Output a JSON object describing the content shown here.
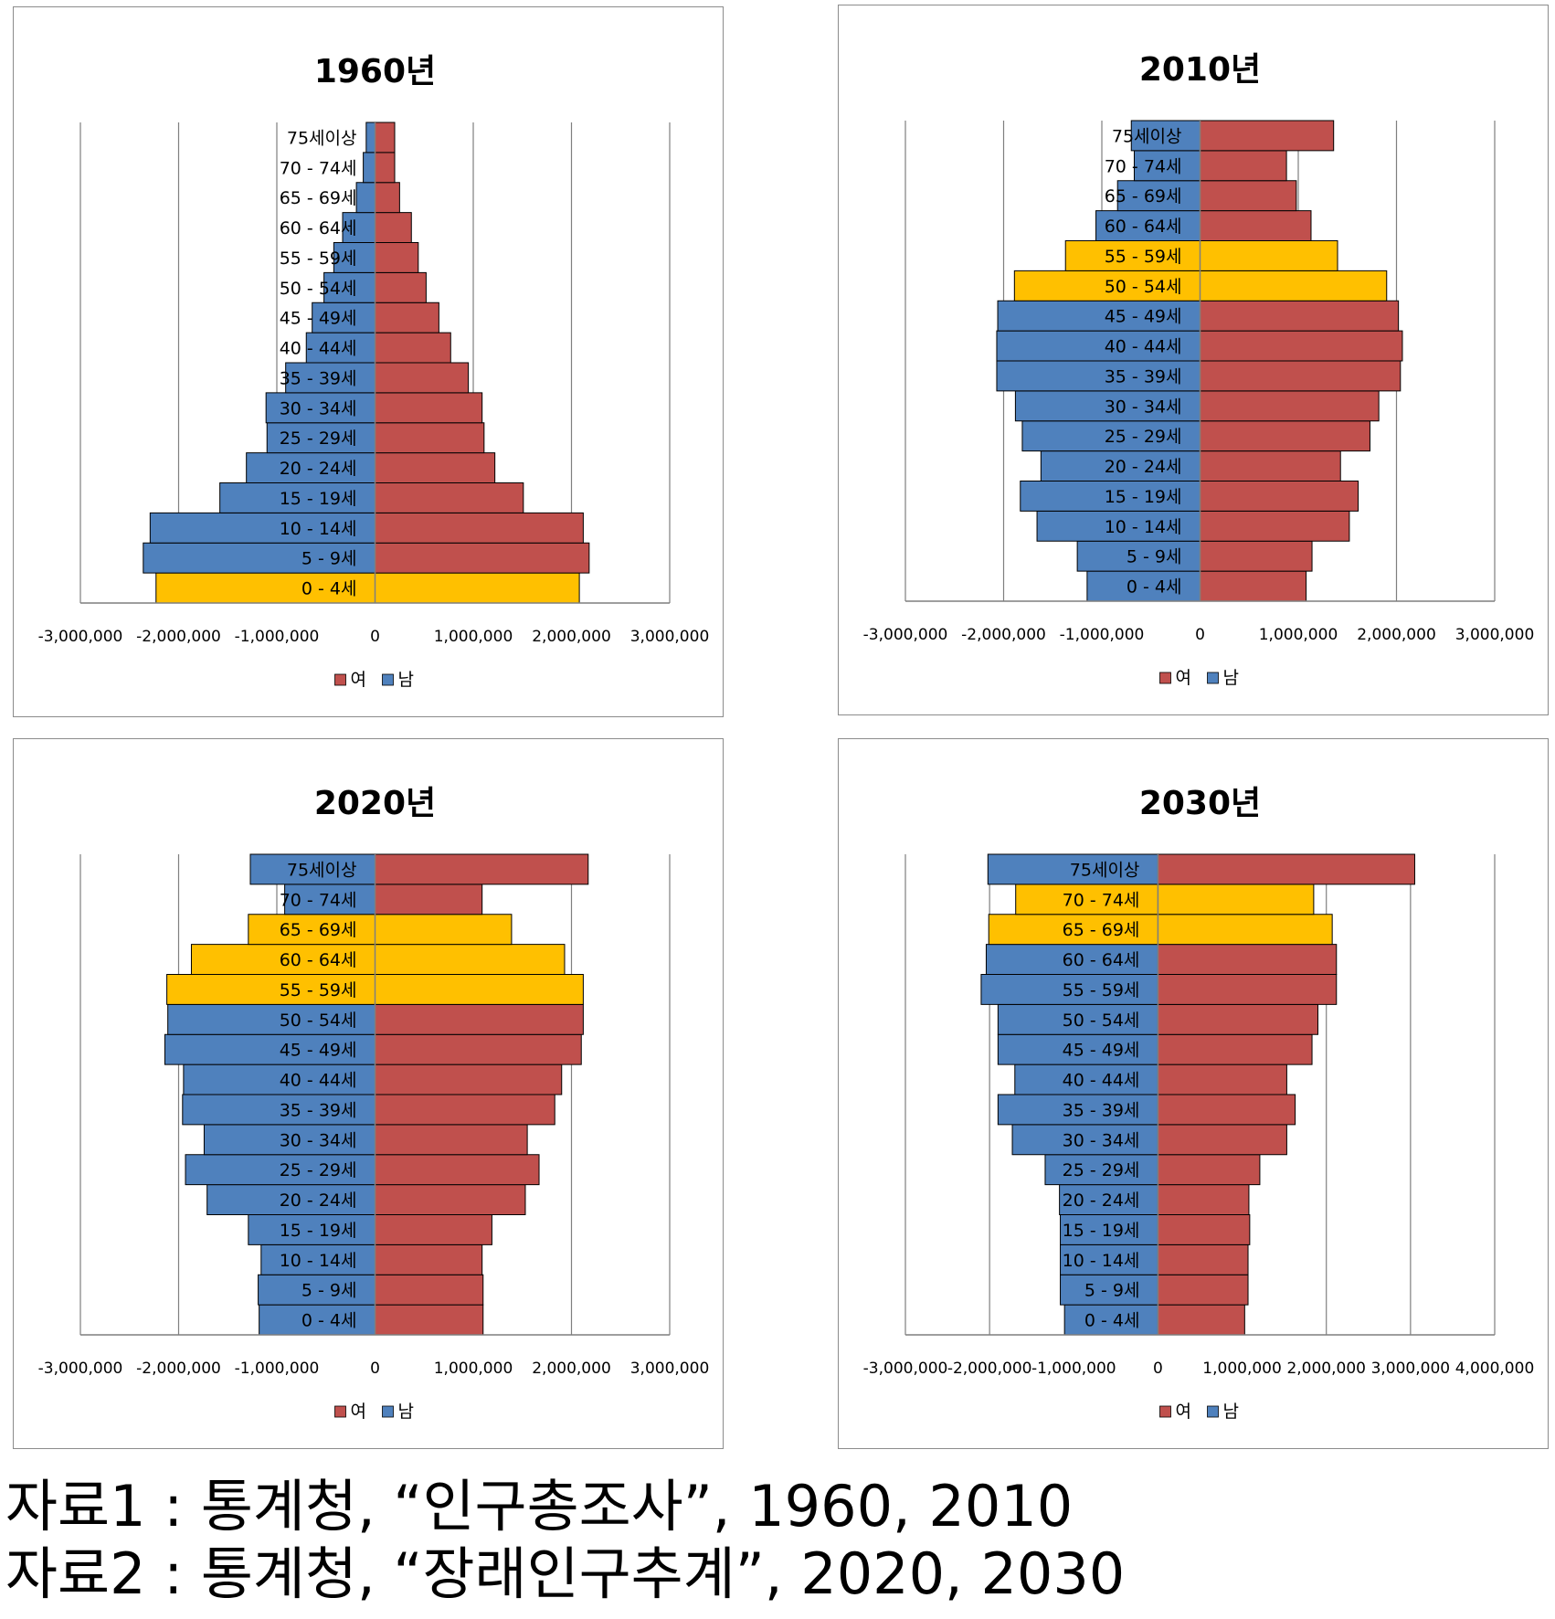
{
  "colors": {
    "female": "#c0504d",
    "male": "#4f81bd",
    "highlight": "#ffc000",
    "bar_stroke": "#000000",
    "grid": "#7f7f7f",
    "panel_border": "#8c8c8c"
  },
  "chart_data": [
    {
      "type": "bar",
      "title": "1960년",
      "categories": [
        "0 - 4세",
        "5 - 9세",
        "10 - 14세",
        "15 - 19세",
        "20 - 24세",
        "25 - 29세",
        "30 - 34세",
        "35 - 39세",
        "40 - 44세",
        "45 - 49세",
        "50 - 54세",
        "55 - 59세",
        "60 - 64세",
        "65 - 69세",
        "70 - 74세",
        "75세이상"
      ],
      "series": [
        {
          "name": "여",
          "values": [
            2080000,
            2180000,
            2120000,
            1510000,
            1220000,
            1110000,
            1090000,
            950000,
            770000,
            650000,
            520000,
            440000,
            370000,
            250000,
            200000,
            200000
          ]
        },
        {
          "name": "남",
          "values": [
            -2230000,
            -2360000,
            -2290000,
            -1580000,
            -1310000,
            -1100000,
            -1110000,
            -910000,
            -700000,
            -640000,
            -520000,
            -420000,
            -330000,
            -190000,
            -120000,
            -90000
          ]
        }
      ],
      "highlight": [
        0
      ],
      "x_ticks": [
        "-3,000,000",
        "-2,000,000",
        "-1,000,000",
        "0",
        "1,000,000",
        "2,000,000",
        "3,000,000"
      ],
      "xlim": [
        -3000000,
        3000000
      ],
      "legend": [
        "여",
        "남"
      ],
      "legend_position": "bottom",
      "grid": true
    },
    {
      "type": "bar",
      "title": "2010년",
      "categories": [
        "0 - 4세",
        "5 - 9세",
        "10 - 14세",
        "15 - 19세",
        "20 - 24세",
        "25 - 29세",
        "30 - 34세",
        "35 - 39세",
        "40 - 44세",
        "45 - 49세",
        "50 - 54세",
        "55 - 59세",
        "60 - 64세",
        "65 - 69세",
        "70 - 74세",
        "75세이상"
      ],
      "series": [
        {
          "name": "여",
          "values": [
            1080000,
            1140000,
            1520000,
            1610000,
            1430000,
            1730000,
            1820000,
            2040000,
            2060000,
            2020000,
            1900000,
            1400000,
            1130000,
            980000,
            880000,
            1360000
          ]
        },
        {
          "name": "남",
          "values": [
            -1150000,
            -1250000,
            -1660000,
            -1830000,
            -1620000,
            -1810000,
            -1880000,
            -2070000,
            -2070000,
            -2060000,
            -1890000,
            -1370000,
            -1060000,
            -840000,
            -670000,
            -700000
          ]
        }
      ],
      "highlight": [
        10,
        11
      ],
      "x_ticks": [
        "-3,000,000",
        "-2,000,000",
        "-1,000,000",
        "0",
        "1,000,000",
        "2,000,000",
        "3,000,000"
      ],
      "xlim": [
        -3000000,
        3000000
      ],
      "legend": [
        "여",
        "남"
      ],
      "legend_position": "bottom",
      "grid": true
    },
    {
      "type": "bar",
      "title": "2020년",
      "categories": [
        "0 - 4세",
        "5 - 9세",
        "10 - 14세",
        "15 - 19세",
        "20 - 24세",
        "25 - 29세",
        "30 - 34세",
        "35 - 39세",
        "40 - 44세",
        "45 - 49세",
        "50 - 54세",
        "55 - 59세",
        "60 - 64세",
        "65 - 69세",
        "70 - 74세",
        "75세이상"
      ],
      "series": [
        {
          "name": "여",
          "values": [
            1100000,
            1100000,
            1090000,
            1190000,
            1530000,
            1670000,
            1550000,
            1830000,
            1900000,
            2100000,
            2120000,
            2120000,
            1930000,
            1390000,
            1090000,
            2170000
          ]
        },
        {
          "name": "남",
          "values": [
            -1180000,
            -1190000,
            -1160000,
            -1290000,
            -1710000,
            -1930000,
            -1740000,
            -1960000,
            -1950000,
            -2140000,
            -2110000,
            -2120000,
            -1870000,
            -1290000,
            -920000,
            -1270000
          ]
        }
      ],
      "highlight": [
        11,
        12,
        13
      ],
      "x_ticks": [
        "-3,000,000",
        "-2,000,000",
        "-1,000,000",
        "0",
        "1,000,000",
        "2,000,000",
        "3,000,000"
      ],
      "xlim": [
        -3000000,
        3000000
      ],
      "legend": [
        "여",
        "남"
      ],
      "legend_position": "bottom",
      "grid": true
    },
    {
      "type": "bar",
      "title": "2030년",
      "categories": [
        "0 - 4세",
        "5 - 9세",
        "10 - 14세",
        "15 - 19세",
        "20 - 24세",
        "25 - 29세",
        "30 - 34세",
        "35 - 39세",
        "40 - 44세",
        "45 - 49세",
        "50 - 54세",
        "55 - 59세",
        "60 - 64세",
        "65 - 69세",
        "70 - 74세",
        "75세이상"
      ],
      "series": [
        {
          "name": "여",
          "values": [
            1030000,
            1070000,
            1070000,
            1090000,
            1080000,
            1210000,
            1530000,
            1630000,
            1530000,
            1830000,
            1900000,
            2120000,
            2120000,
            2070000,
            1850000,
            3050000
          ]
        },
        {
          "name": "남",
          "values": [
            -1110000,
            -1160000,
            -1160000,
            -1160000,
            -1170000,
            -1340000,
            -1730000,
            -1900000,
            -1700000,
            -1900000,
            -1900000,
            -2100000,
            -2040000,
            -2010000,
            -1690000,
            -2020000
          ]
        }
      ],
      "highlight": [
        13,
        14
      ],
      "x_ticks": [
        "-3,000,000",
        "-2,000,000",
        "-1,000,000",
        "0",
        "1,000,000",
        "2,000,000",
        "3,000,000",
        "4,000,000"
      ],
      "xlim": [
        -3000000,
        4000000
      ],
      "legend": [
        "여",
        "남"
      ],
      "legend_position": "bottom",
      "grid": true
    }
  ],
  "sources": [
    "자료1 : 통계청, “인구총조사”, 1960, 2010",
    "자료2 : 통계청, “장래인구추계”, 2020, 2030"
  ]
}
